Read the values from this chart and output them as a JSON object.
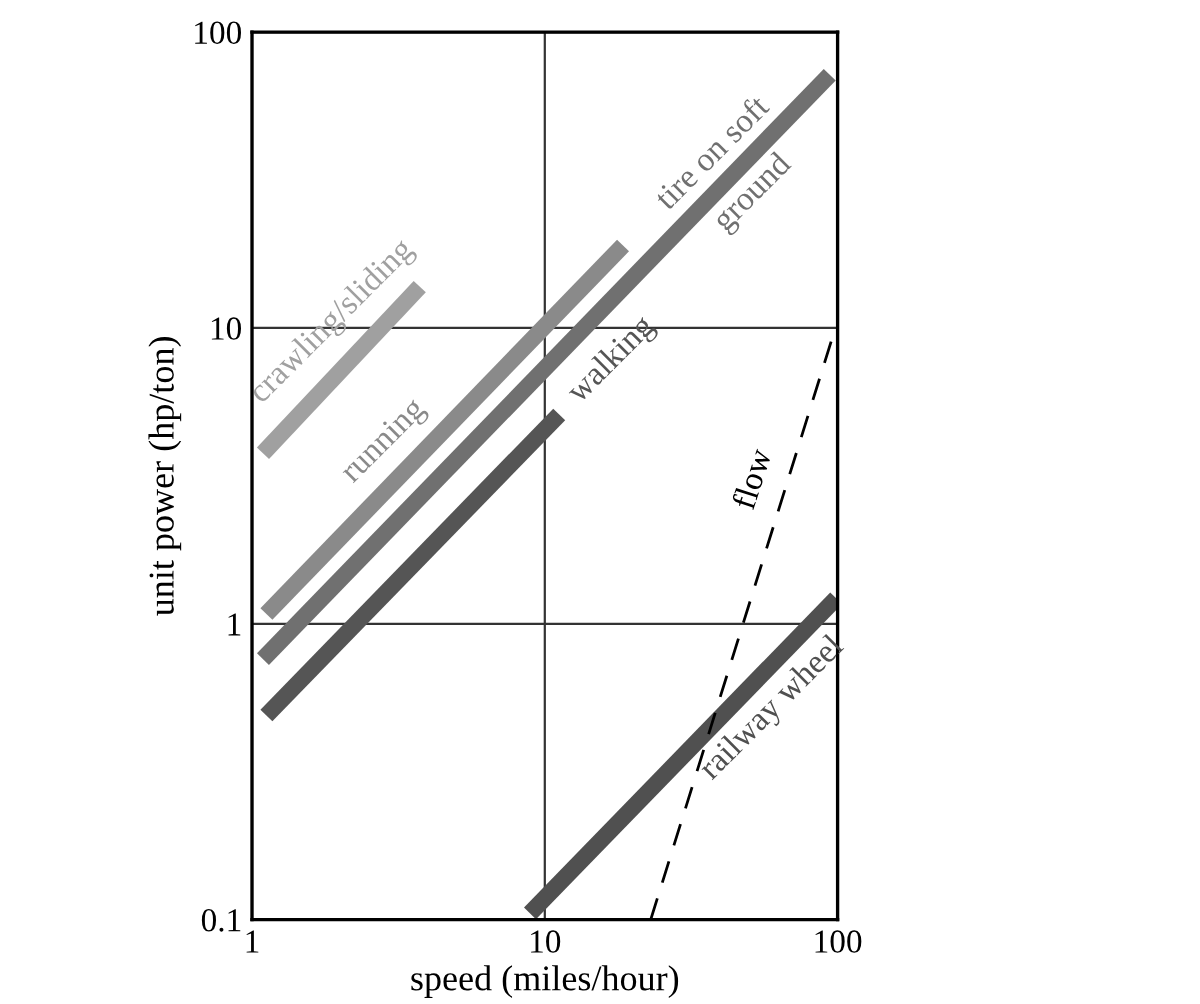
{
  "chart_data": {
    "type": "line",
    "xlabel": "speed (miles/hour)",
    "ylabel": "unit power (hp/ton)",
    "log": "xy",
    "xlim": [
      1,
      100
    ],
    "ylim": [
      0.1,
      100
    ],
    "xticks": [
      1,
      10,
      100
    ],
    "yticks": [
      0.1,
      1,
      10,
      100
    ],
    "grid": true,
    "marker": "none",
    "series": [
      {
        "name": "crawling/sliding",
        "color": "#a0a0a0",
        "x": [
          1.09,
          3.74
        ],
        "values": [
          3.77,
          13.8
        ]
      },
      {
        "name": "running",
        "color": "#8a8a8a",
        "x": [
          1.12,
          18.5
        ],
        "values": [
          1.08,
          19
        ]
      },
      {
        "name": "tire on soft\nground",
        "color": "#707070",
        "x": [
          1.09,
          94
        ],
        "values": [
          0.76,
          71.8
        ]
      },
      {
        "name": "walking",
        "color": "#555555",
        "x": [
          1.12,
          11.2
        ],
        "values": [
          0.49,
          5.1
        ]
      },
      {
        "name": "railway wheel",
        "color": "#505050",
        "x": [
          8.9,
          98.9
        ],
        "values": [
          0.105,
          1.22
        ]
      },
      {
        "name": "flow",
        "color": "#000000",
        "x": [
          23,
          97
        ],
        "values": [
          0.1,
          9.6
        ],
        "line_style": "dashed"
      }
    ]
  }
}
